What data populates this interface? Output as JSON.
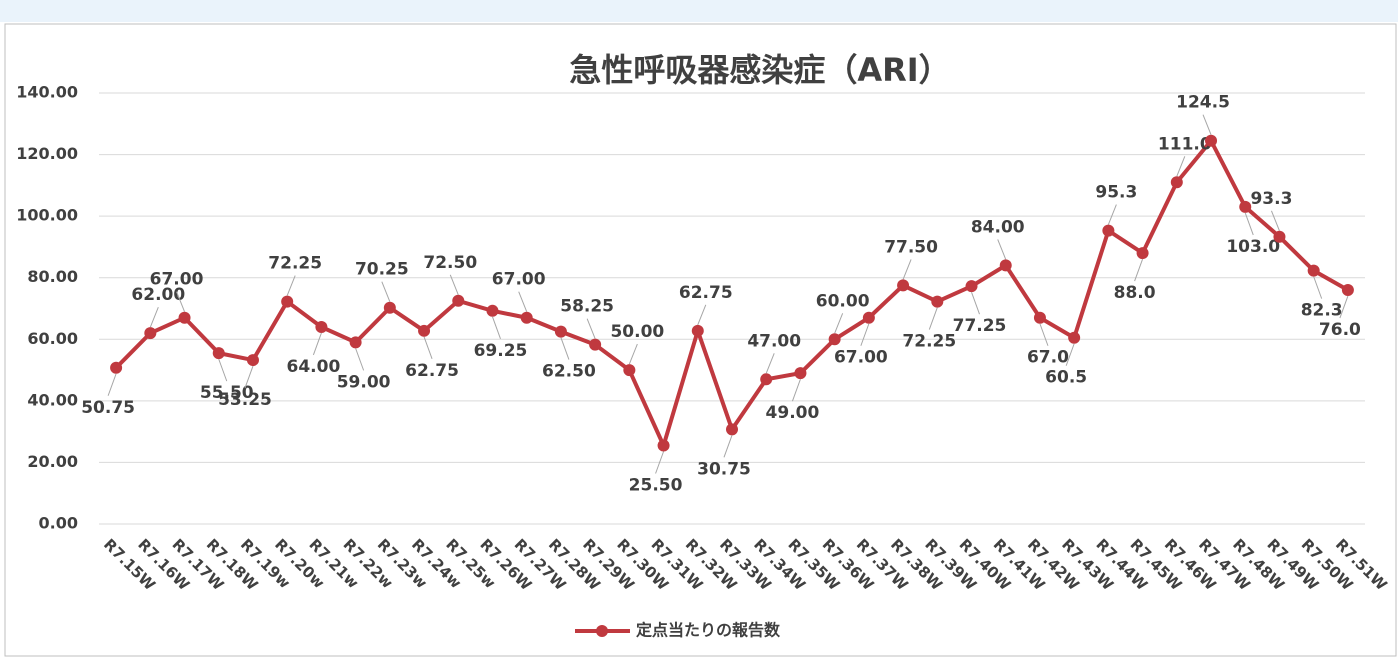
{
  "chart_data": {
    "type": "line",
    "title": "急性呼吸器感染症（ARI）",
    "categories": [
      "R7.15W",
      "R7.16W",
      "R7.17W",
      "R7.18W",
      "R7.19w",
      "R7.20w",
      "R7.21w",
      "R7.22w",
      "R7.23w",
      "R7.24w",
      "R7.25w",
      "R7.26W",
      "R7.27W",
      "R7.28W",
      "R7.29W",
      "R7.30W",
      "R7.31W",
      "R7.32W",
      "R7.33W",
      "R7.34W",
      "R7.35W",
      "R7.36W",
      "R7.37W",
      "R7.38W",
      "R7.39W",
      "R7.40W",
      "R7.41W",
      "R7.42W",
      "R7.43W",
      "R7.44W",
      "R7.45W",
      "R7.46W",
      "R7.47W",
      "R7.48W",
      "R7.49W",
      "R7.50W",
      "R7.51W"
    ],
    "series": [
      {
        "name": "定点当たりの報告数",
        "color": "#c0393f",
        "values": [
          50.75,
          62,
          67,
          55.5,
          53.25,
          72.25,
          64,
          59,
          70.25,
          62.75,
          72.5,
          69.25,
          67,
          62.5,
          58.25,
          50,
          25.5,
          62.75,
          30.75,
          47,
          49,
          60,
          67,
          77.5,
          72.25,
          77.25,
          84,
          67,
          60.5,
          95.3,
          88,
          111,
          124.5,
          103,
          93.3,
          82.3,
          76
        ],
        "value_labels": [
          "50.75",
          "62.00",
          "67.00",
          "55.50",
          "53.25",
          "72.25",
          "64.00",
          "59.00",
          "70.25",
          "62.75",
          "72.50",
          "69.25",
          "67.00",
          "62.50",
          "58.25",
          "50.00",
          "25.50",
          "62.75",
          "30.75",
          "47.00",
          "49.00",
          "60.00",
          "67.00",
          "77.50",
          "72.25",
          "77.25",
          "84.00",
          "67.0",
          "60.5",
          "95.3",
          "88.0",
          "111.0",
          "124.5",
          "103.0",
          "93.3",
          "82.3",
          "76.0"
        ]
      }
    ],
    "ylim": [
      0,
      140
    ],
    "yticks": [
      {
        "value": 0,
        "label": "0.00"
      },
      {
        "value": 20,
        "label": "20.00"
      },
      {
        "value": 40,
        "label": "40.00"
      },
      {
        "value": 60,
        "label": "60.00"
      },
      {
        "value": 80,
        "label": "80.00"
      },
      {
        "value": 100,
        "label": "100.00"
      },
      {
        "value": 120,
        "label": "120.00"
      },
      {
        "value": 140,
        "label": "140.00"
      }
    ],
    "grid": true,
    "legend": "bottom"
  }
}
